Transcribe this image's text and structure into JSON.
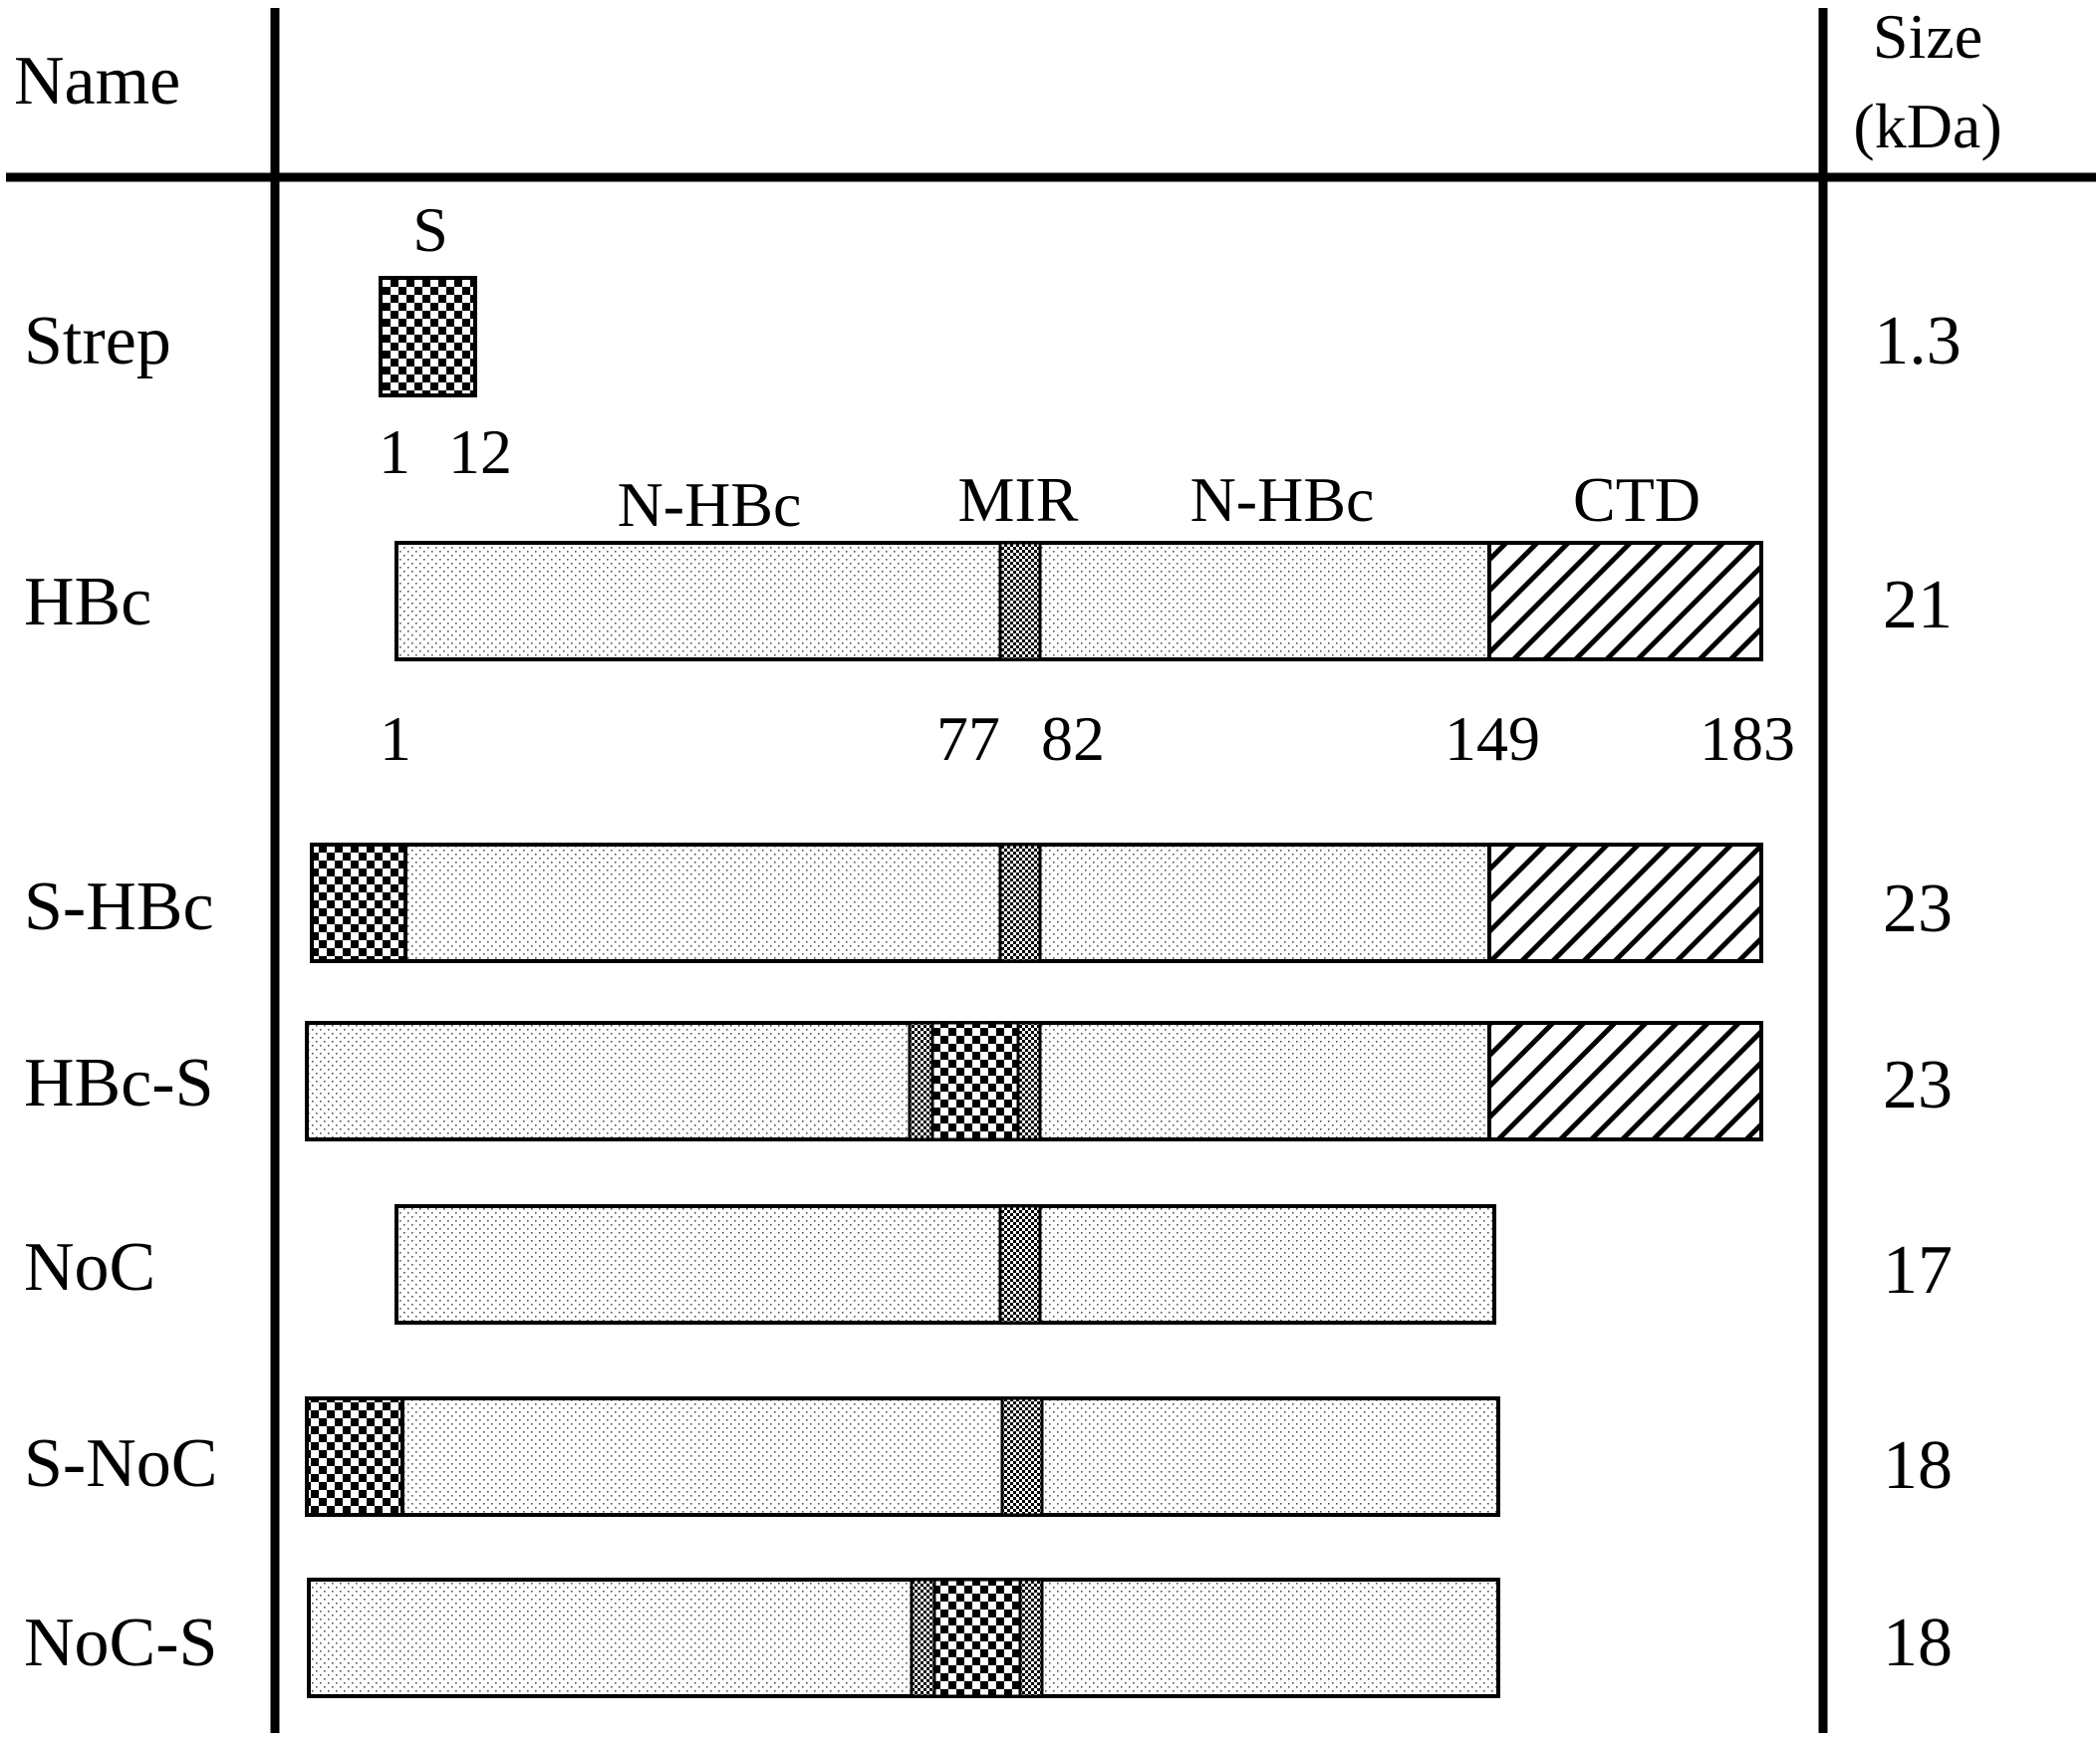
{
  "header": {
    "name_label": "Name",
    "size_label_line1": "Size",
    "size_label_line2": "(kDa)"
  },
  "strep_tag": {
    "label": "S",
    "start": "1",
    "end": "12"
  },
  "hbc_domains": {
    "nhbc_left": "N-HBc",
    "mir": "MIR",
    "nhbc_right": "N-HBc",
    "ctd": "CTD"
  },
  "hbc_positions": [
    "1",
    "77",
    "82",
    "149",
    "183"
  ],
  "constructs": [
    {
      "name": "Strep",
      "size": "1.3"
    },
    {
      "name": "HBc",
      "size": "21"
    },
    {
      "name": "S-HBc",
      "size": "23"
    },
    {
      "name": "HBc-S",
      "size": "23"
    },
    {
      "name": "NoC",
      "size": "17"
    },
    {
      "name": "S-NoC",
      "size": "18"
    },
    {
      "name": "NoC-S",
      "size": "18"
    }
  ],
  "legend_patterns": {
    "strep": "checker",
    "nhbc": "dotted",
    "mir": "fine-checker",
    "ctd": "diagonal-hatch"
  }
}
